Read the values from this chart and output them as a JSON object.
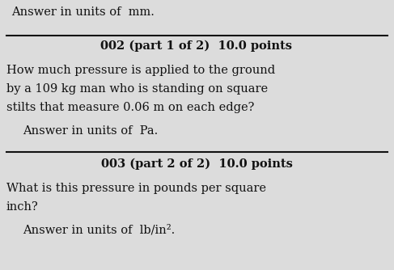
{
  "bg_color": "#dcdcdc",
  "top_text": "Answer in units of  mm.",
  "section1_header": "002 (part 1 of 2)  10.0 points",
  "section1_body_line1": "How much pressure is applied to the ground",
  "section1_body_line2": "by a 109 kg man who is standing on square",
  "section1_body_line3": "stilts that measure 0.06 m on each edge?",
  "section1_answer": "Answer in units of  Pa.",
  "section2_header": "003 (part 2 of 2)  10.0 points",
  "section2_body_line1": "What is this pressure in pounds per square",
  "section2_body_line2": "inch?",
  "section2_answer": "Answer in units of  lb/in².",
  "line_color": "#111111",
  "text_color": "#111111",
  "fontsize": 10.5,
  "header_fontsize": 10.5
}
